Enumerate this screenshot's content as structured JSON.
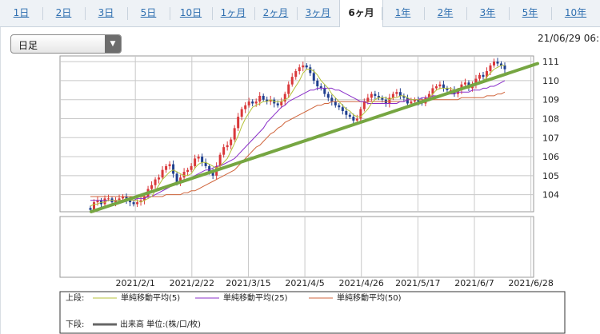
{
  "tabs": [
    "1日",
    "2日",
    "3日",
    "5日",
    "10日",
    "1ヶ月",
    "2ヶ月",
    "3ヶ月",
    "6ヶ月",
    "1年",
    "2年",
    "3年",
    "5年",
    "10年"
  ],
  "active_tab": "6ヶ月",
  "period_select": {
    "value": "日足"
  },
  "datetime": "21/06/29 06:",
  "chart_data": {
    "type": "candlestick",
    "ylim": [
      103.1,
      111.3
    ],
    "yticks": [
      104,
      105,
      106,
      107,
      108,
      109,
      110,
      111
    ],
    "xticks": [
      "2021/2/1",
      "2021/2/22",
      "2021/3/15",
      "2021/4/5",
      "2021/4/26",
      "2021/5/17",
      "2021/6/7",
      "2021/6/28"
    ],
    "x_start": "2021-01-04",
    "x_end": "2021-06-29",
    "close": [
      103.2,
      103.6,
      103.7,
      103.5,
      103.8,
      103.8,
      103.6,
      103.7,
      103.8,
      103.9,
      103.7,
      103.6,
      103.5,
      103.6,
      103.7,
      103.9,
      104.3,
      104.5,
      104.8,
      104.9,
      105.3,
      105.5,
      105.6,
      105.1,
      104.6,
      104.9,
      105.2,
      105.3,
      105.5,
      105.9,
      106.0,
      105.7,
      105.5,
      105.2,
      105.0,
      105.5,
      106.1,
      106.5,
      106.6,
      106.9,
      107.5,
      108.1,
      108.5,
      108.7,
      108.9,
      108.8,
      108.9,
      109.2,
      109.0,
      108.9,
      109.0,
      108.8,
      108.7,
      108.9,
      109.3,
      109.8,
      110.2,
      110.5,
      110.7,
      110.8,
      110.7,
      110.4,
      110.0,
      109.7,
      109.6,
      109.3,
      109.1,
      108.9,
      108.7,
      108.6,
      108.4,
      108.2,
      108.1,
      107.9,
      108.0,
      108.5,
      108.9,
      109.1,
      109.3,
      109.2,
      109.1,
      109.0,
      108.8,
      109.1,
      109.3,
      109.4,
      109.2,
      109.1,
      108.8,
      108.9,
      109.0,
      108.9,
      108.8,
      109.1,
      109.3,
      109.6,
      109.7,
      109.8,
      109.6,
      109.5,
      109.5,
      109.3,
      109.5,
      109.8,
      109.9,
      109.6,
      109.8,
      110.1,
      110.3,
      110.2,
      110.5,
      110.8,
      111.0,
      110.9,
      110.8,
      110.6
    ],
    "open": [
      103.3,
      103.2,
      103.6,
      103.7,
      103.5,
      103.8,
      103.8,
      103.6,
      103.7,
      103.8,
      103.9,
      103.7,
      103.6,
      103.5,
      103.6,
      103.7,
      103.9,
      104.3,
      104.5,
      104.8,
      104.9,
      105.3,
      105.5,
      105.6,
      105.1,
      104.6,
      104.9,
      105.2,
      105.3,
      105.5,
      105.9,
      106.0,
      105.7,
      105.5,
      105.2,
      105.0,
      105.5,
      106.1,
      106.5,
      106.6,
      106.9,
      107.5,
      108.1,
      108.5,
      108.7,
      108.9,
      108.8,
      108.9,
      109.2,
      109.0,
      108.9,
      109.0,
      108.8,
      108.7,
      108.9,
      109.3,
      109.8,
      110.2,
      110.5,
      110.7,
      110.8,
      110.7,
      110.4,
      110.0,
      109.7,
      109.6,
      109.3,
      109.1,
      108.9,
      108.7,
      108.6,
      108.4,
      108.2,
      108.1,
      107.9,
      108.0,
      108.5,
      108.9,
      109.1,
      109.3,
      109.2,
      109.1,
      109.0,
      108.8,
      109.1,
      109.3,
      109.4,
      109.2,
      109.1,
      108.8,
      108.9,
      109.0,
      108.9,
      108.8,
      109.1,
      109.3,
      109.6,
      109.7,
      109.8,
      109.6,
      109.5,
      109.5,
      109.3,
      109.5,
      109.8,
      109.9,
      109.6,
      109.8,
      110.1,
      110.3,
      110.2,
      110.5,
      110.8,
      111.0,
      110.9,
      110.8
    ],
    "sma5": [
      103.4,
      103.5,
      103.5,
      103.6,
      103.6,
      103.7,
      103.7,
      103.7,
      103.7,
      103.7,
      103.8,
      103.7,
      103.7,
      103.7,
      103.6,
      103.7,
      103.8,
      103.9,
      104.2,
      104.5,
      104.8,
      105.0,
      105.2,
      105.3,
      105.2,
      105.1,
      105.0,
      105.0,
      105.1,
      105.4,
      105.6,
      105.7,
      105.7,
      105.6,
      105.5,
      105.4,
      105.5,
      105.7,
      105.9,
      106.3,
      106.7,
      107.1,
      107.6,
      108.0,
      108.3,
      108.6,
      108.7,
      108.8,
      108.9,
      108.9,
      109.0,
      108.9,
      108.9,
      108.9,
      109.0,
      109.1,
      109.4,
      109.7,
      110.0,
      110.4,
      110.6,
      110.6,
      110.5,
      110.3,
      110.0,
      109.8,
      109.6,
      109.3,
      109.1,
      108.9,
      108.7,
      108.5,
      108.4,
      108.2,
      108.1,
      108.1,
      108.3,
      108.5,
      108.8,
      109.0,
      109.1,
      109.1,
      109.1,
      109.0,
      109.1,
      109.1,
      109.2,
      109.2,
      109.1,
      109.0,
      109.0,
      109.0,
      108.9,
      109.0,
      109.1,
      109.3,
      109.5,
      109.6,
      109.6,
      109.6,
      109.6,
      109.5,
      109.5,
      109.5,
      109.6,
      109.6,
      109.7,
      109.8,
      109.9,
      110.0,
      110.2,
      110.4,
      110.6,
      110.7,
      110.8,
      110.8
    ],
    "sma25": [
      103.7,
      103.7,
      103.7,
      103.7,
      103.7,
      103.7,
      103.7,
      103.7,
      103.7,
      103.7,
      103.7,
      103.7,
      103.7,
      103.8,
      103.8,
      103.8,
      103.9,
      103.9,
      104.0,
      104.1,
      104.2,
      104.3,
      104.4,
      104.5,
      104.6,
      104.7,
      104.8,
      104.8,
      104.9,
      105.0,
      105.1,
      105.2,
      105.3,
      105.3,
      105.4,
      105.5,
      105.5,
      105.6,
      105.7,
      105.8,
      105.9,
      106.1,
      106.3,
      106.5,
      106.7,
      106.9,
      107.1,
      107.3,
      107.5,
      107.8,
      108.0,
      108.2,
      108.4,
      108.6,
      108.7,
      108.9,
      109.0,
      109.1,
      109.2,
      109.3,
      109.4,
      109.5,
      109.5,
      109.6,
      109.6,
      109.6,
      109.6,
      109.6,
      109.5,
      109.5,
      109.4,
      109.3,
      109.2,
      109.1,
      109.0,
      108.9,
      108.9,
      108.8,
      108.8,
      108.8,
      108.8,
      108.8,
      108.8,
      108.8,
      108.8,
      108.8,
      108.9,
      108.9,
      109.0,
      109.0,
      109.0,
      109.0,
      109.1,
      109.1,
      109.1,
      109.2,
      109.2,
      109.2,
      109.3,
      109.3,
      109.3,
      109.3,
      109.4,
      109.4,
      109.4,
      109.4,
      109.5,
      109.5,
      109.5,
      109.6,
      109.6,
      109.7,
      109.7,
      109.8,
      109.9,
      110.0
    ],
    "sma50": [
      103.9,
      103.9,
      103.9,
      103.9,
      103.9,
      103.9,
      103.9,
      103.9,
      103.9,
      103.9,
      103.9,
      103.9,
      103.9,
      103.9,
      103.9,
      103.9,
      103.9,
      103.9,
      103.9,
      103.9,
      103.9,
      104.0,
      104.0,
      104.0,
      104.0,
      104.0,
      104.1,
      104.1,
      104.2,
      104.2,
      104.3,
      104.4,
      104.5,
      104.6,
      104.7,
      104.8,
      104.9,
      105.0,
      105.1,
      105.2,
      105.3,
      105.5,
      105.7,
      105.9,
      106.1,
      106.3,
      106.5,
      106.6,
      106.8,
      107.0,
      107.2,
      107.3,
      107.5,
      107.6,
      107.8,
      107.9,
      108.0,
      108.1,
      108.2,
      108.3,
      108.4,
      108.5,
      108.6,
      108.7,
      108.7,
      108.8,
      108.8,
      108.9,
      108.9,
      108.9,
      108.9,
      108.9,
      108.9,
      108.9,
      108.9,
      108.9,
      108.9,
      108.9,
      108.9,
      108.9,
      108.9,
      108.9,
      108.9,
      108.9,
      108.9,
      108.9,
      108.9,
      108.9,
      109.0,
      109.0,
      109.0,
      109.0,
      109.0,
      109.0,
      109.0,
      109.0,
      109.0,
      109.0,
      109.0,
      109.0,
      109.0,
      109.0,
      109.0,
      109.1,
      109.1,
      109.1,
      109.1,
      109.1,
      109.1,
      109.1,
      109.2,
      109.2,
      109.2,
      109.3,
      109.3,
      109.4
    ],
    "trendline": {
      "from": [
        103.1,
        0
      ],
      "to": [
        110.9,
        1
      ]
    },
    "legend_top": {
      "label": "上段:",
      "items": [
        "単純移動平均(5)",
        "単純移動平均(25)",
        "単純移動平均(50)"
      ]
    },
    "legend_bottom": {
      "label": "下段:",
      "items": [
        "出来高 単位:(株/口/枚)"
      ]
    },
    "colors": {
      "up": "#d9383a",
      "down": "#1f3f8f",
      "sma5": "#b5c23a",
      "sma25": "#8a2fc9",
      "sma50": "#d0653c",
      "trend": "#76a642",
      "grid": "#c8c8c8"
    }
  }
}
